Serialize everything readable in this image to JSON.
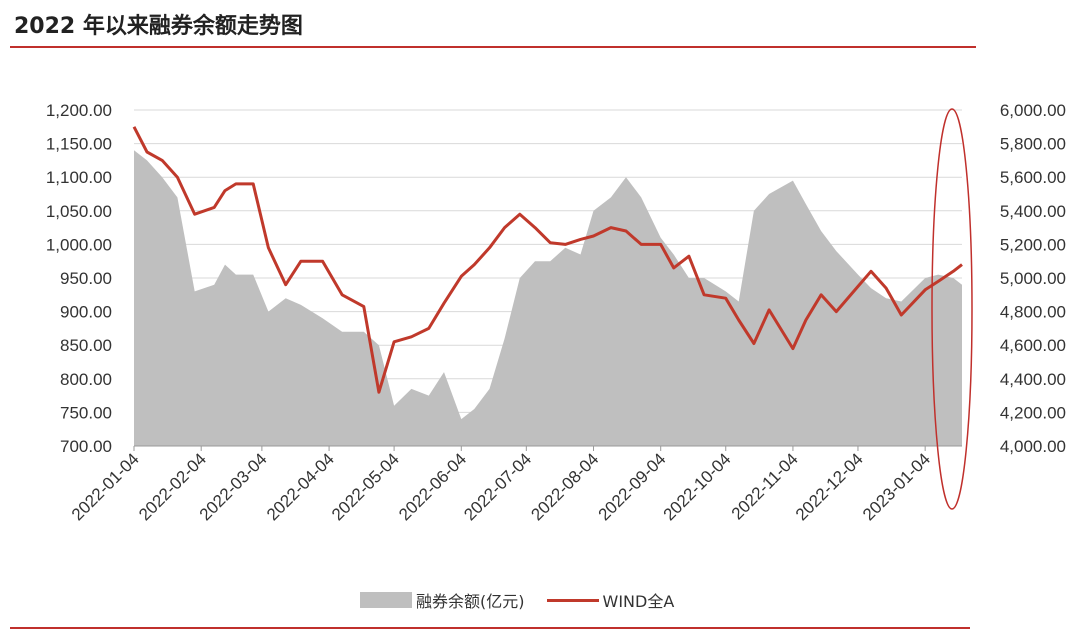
{
  "title": "2022 年以来融券余额走势图",
  "colors": {
    "area": "#bfbfbf",
    "line": "#c0392b",
    "rule": "#c0302c",
    "highlight": "#c0302c"
  },
  "legend": {
    "area_label": "融券余额(亿元)",
    "line_label": "WIND全A"
  },
  "chart_data": {
    "type": "area+line",
    "left_axis": {
      "min": 700,
      "max": 1200,
      "ticks": [
        "1,200.00",
        "1,150.00",
        "1,100.00",
        "1,050.00",
        "1,000.00",
        "950.00",
        "900.00",
        "850.00",
        "800.00",
        "750.00",
        "700.00"
      ]
    },
    "right_axis": {
      "min": 4000,
      "max": 6000,
      "ticks": [
        "6,000.00",
        "5,800.00",
        "5,600.00",
        "5,400.00",
        "5,200.00",
        "5,000.00",
        "4,800.00",
        "4,600.00",
        "4,400.00",
        "4,200.00",
        "4,000.00"
      ]
    },
    "x_ticks": [
      "2022-01-04",
      "2022-02-04",
      "2022-03-04",
      "2022-04-04",
      "2022-05-04",
      "2022-06-04",
      "2022-07-04",
      "2022-08-04",
      "2022-09-04",
      "2022-10-04",
      "2022-11-04",
      "2022-12-04",
      "2023-01-04"
    ],
    "grid": "horizontal",
    "legend_position": "bottom",
    "annotation": "red ellipse highlighting latest period",
    "series": [
      {
        "name": "融券余额(亿元)",
        "axis": "left",
        "kind": "area",
        "x": [
          "2022-01-04",
          "2022-01-10",
          "2022-01-17",
          "2022-01-24",
          "2022-02-01",
          "2022-02-10",
          "2022-02-15",
          "2022-02-20",
          "2022-02-28",
          "2022-03-07",
          "2022-03-15",
          "2022-03-22",
          "2022-04-01",
          "2022-04-10",
          "2022-04-20",
          "2022-04-27",
          "2022-05-04",
          "2022-05-12",
          "2022-05-20",
          "2022-05-27",
          "2022-06-04",
          "2022-06-10",
          "2022-06-17",
          "2022-06-24",
          "2022-07-01",
          "2022-07-08",
          "2022-07-15",
          "2022-07-22",
          "2022-07-29",
          "2022-08-04",
          "2022-08-12",
          "2022-08-19",
          "2022-08-26",
          "2022-09-04",
          "2022-09-10",
          "2022-09-17",
          "2022-09-24",
          "2022-10-04",
          "2022-10-10",
          "2022-10-17",
          "2022-10-24",
          "2022-11-04",
          "2022-11-10",
          "2022-11-17",
          "2022-11-24",
          "2022-12-04",
          "2022-12-10",
          "2022-12-17",
          "2022-12-24",
          "2023-01-04",
          "2023-01-10",
          "2023-01-17",
          "2023-01-21"
        ],
        "values": [
          1140,
          1125,
          1100,
          1070,
          930,
          940,
          970,
          955,
          955,
          900,
          920,
          910,
          890,
          870,
          870,
          850,
          760,
          785,
          775,
          810,
          740,
          755,
          785,
          860,
          950,
          975,
          975,
          995,
          985,
          1050,
          1070,
          1100,
          1070,
          1010,
          985,
          950,
          950,
          930,
          915,
          1050,
          1075,
          1095,
          1060,
          1020,
          990,
          955,
          935,
          920,
          915,
          950,
          955,
          950,
          940
        ]
      },
      {
        "name": "WIND全A",
        "axis": "right",
        "kind": "line",
        "x": [
          "2022-01-04",
          "2022-01-10",
          "2022-01-17",
          "2022-01-24",
          "2022-02-01",
          "2022-02-10",
          "2022-02-15",
          "2022-02-20",
          "2022-02-28",
          "2022-03-07",
          "2022-03-15",
          "2022-03-22",
          "2022-04-01",
          "2022-04-10",
          "2022-04-20",
          "2022-04-27",
          "2022-05-04",
          "2022-05-12",
          "2022-05-20",
          "2022-05-27",
          "2022-06-04",
          "2022-06-10",
          "2022-06-17",
          "2022-06-24",
          "2022-07-01",
          "2022-07-08",
          "2022-07-15",
          "2022-07-22",
          "2022-07-29",
          "2022-08-04",
          "2022-08-12",
          "2022-08-19",
          "2022-08-26",
          "2022-09-04",
          "2022-09-10",
          "2022-09-17",
          "2022-09-24",
          "2022-10-04",
          "2022-10-10",
          "2022-10-17",
          "2022-10-24",
          "2022-11-04",
          "2022-11-10",
          "2022-11-17",
          "2022-11-24",
          "2022-12-04",
          "2022-12-10",
          "2022-12-17",
          "2022-12-24",
          "2023-01-04",
          "2023-01-10",
          "2023-01-17",
          "2023-01-21"
        ],
        "values": [
          5900,
          5750,
          5700,
          5600,
          5380,
          5420,
          5520,
          5560,
          5560,
          5180,
          4960,
          5100,
          5100,
          4900,
          4830,
          4320,
          4620,
          4650,
          4700,
          4850,
          5010,
          5080,
          5180,
          5300,
          5380,
          5300,
          5210,
          5200,
          5230,
          5250,
          5300,
          5280,
          5200,
          5200,
          5060,
          5130,
          4900,
          4880,
          4750,
          4610,
          4810,
          4580,
          4750,
          4900,
          4800,
          4950,
          5040,
          4940,
          4780,
          4930,
          4980,
          5040,
          5080
        ]
      }
    ]
  }
}
